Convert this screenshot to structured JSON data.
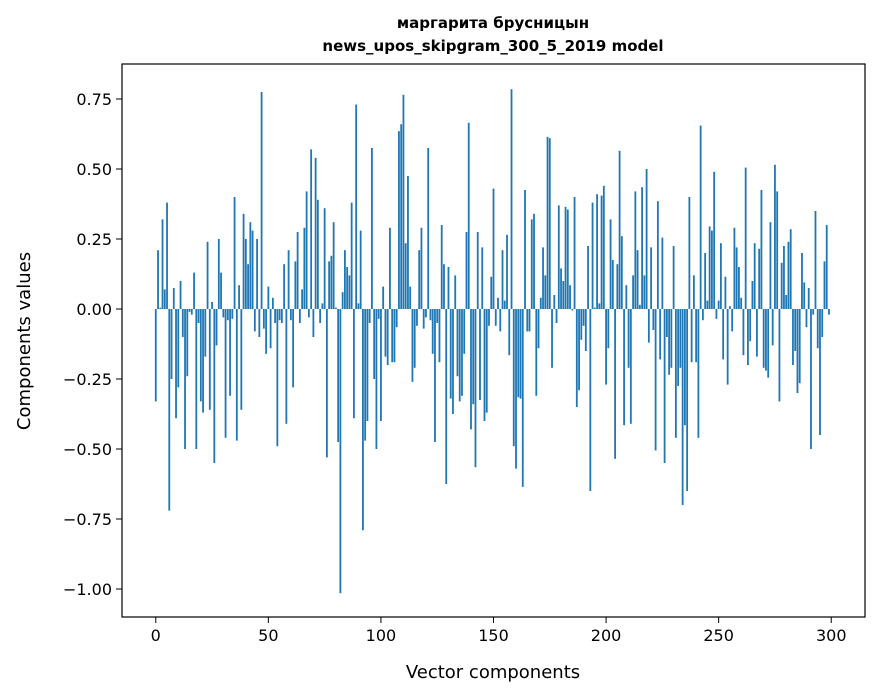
{
  "chart_data": {
    "type": "bar",
    "title_line1": "маргарита брусницын",
    "title_line2": "news_upos_skipgram_300_5_2019 model",
    "xlabel": "Vector components",
    "ylabel": "Components values",
    "xlim": [
      -15,
      315
    ],
    "ylim": [
      -1.1,
      0.875
    ],
    "xticks": [
      0,
      50,
      100,
      150,
      200,
      250,
      300
    ],
    "xtick_labels": [
      "0",
      "50",
      "100",
      "150",
      "200",
      "250",
      "300"
    ],
    "yticks": [
      0.75,
      0.5,
      0.25,
      0.0,
      -0.25,
      -0.5,
      -0.75,
      -1.0
    ],
    "ytick_labels": [
      "0.75",
      "0.50",
      "0.25",
      "0.00",
      "−0.25",
      "−0.50",
      "−0.75",
      "−1.00"
    ],
    "grid": false,
    "bar_color": "#1f77b4",
    "values": [
      -0.33,
      0.21,
      0.005,
      0.32,
      0.07,
      0.38,
      -0.72,
      -0.25,
      0.075,
      -0.39,
      -0.28,
      0.1,
      -0.1,
      -0.5,
      -0.24,
      -0.01,
      -0.02,
      0.13,
      -0.5,
      -0.05,
      -0.33,
      -0.37,
      -0.17,
      0.24,
      -0.36,
      0.025,
      -0.55,
      -0.13,
      0.25,
      0.13,
      -0.03,
      -0.46,
      -0.04,
      -0.31,
      -0.035,
      0.4,
      -0.47,
      0.085,
      -0.36,
      0.34,
      0.25,
      0.16,
      0.31,
      0.28,
      -0.08,
      0.25,
      -0.1,
      0.775,
      -0.07,
      -0.16,
      0.08,
      -0.14,
      0.04,
      -0.05,
      -0.49,
      -0.04,
      -0.05,
      0.16,
      -0.41,
      0.21,
      -0.04,
      -0.28,
      0.17,
      0.275,
      -0.05,
      0.07,
      0.29,
      0.42,
      -0.03,
      0.57,
      -0.1,
      0.54,
      0.39,
      -0.05,
      0.02,
      0.36,
      -0.53,
      0.17,
      0.19,
      0.31,
      0.005,
      -0.475,
      -1.015,
      0.06,
      0.21,
      0.15,
      0.12,
      0.38,
      -0.39,
      0.73,
      0.02,
      0.28,
      -0.79,
      -0.47,
      -0.4,
      -0.05,
      0.575,
      -0.25,
      -0.5,
      -0.035,
      -0.4,
      0.08,
      -0.17,
      -0.2,
      0.29,
      -0.19,
      -0.19,
      -0.065,
      0.635,
      0.66,
      0.765,
      0.235,
      0.475,
      0.08,
      -0.26,
      -0.21,
      -0.06,
      0.21,
      0.29,
      -0.07,
      -0.03,
      0.575,
      -0.04,
      -0.16,
      -0.475,
      -0.05,
      -0.19,
      0.3,
      0.16,
      -0.625,
      0.15,
      -0.32,
      -0.375,
      0.12,
      -0.24,
      -0.33,
      -0.31,
      -0.16,
      0.275,
      0.665,
      -0.43,
      -0.34,
      -0.565,
      0.275,
      -0.325,
      0.22,
      -0.4,
      -0.37,
      -0.06,
      0.115,
      0.43,
      -0.06,
      0.04,
      -0.08,
      0.21,
      0.03,
      0.265,
      -0.165,
      0.785,
      -0.49,
      -0.57,
      -0.315,
      -0.32,
      -0.635,
      0.425,
      -0.08,
      -0.08,
      0.32,
      0.34,
      -0.31,
      -0.14,
      0.04,
      0.22,
      0.12,
      0.615,
      0.61,
      -0.21,
      0.05,
      -0.05,
      0.37,
      0.145,
      0.1,
      0.365,
      0.355,
      0.085,
      -0.005,
      0.4,
      -0.35,
      -0.29,
      -0.11,
      -0.06,
      -0.15,
      0.225,
      -0.65,
      0.38,
      0.005,
      0.41,
      0.02,
      0.405,
      0.44,
      -0.27,
      -0.14,
      0.32,
      0.175,
      -0.535,
      0.16,
      0.565,
      0.26,
      -0.415,
      0.085,
      -0.21,
      -0.41,
      0.12,
      0.42,
      0.21,
      0.015,
      0.435,
      0.12,
      0.5,
      -0.12,
      0.22,
      -0.075,
      -0.505,
      0.385,
      -0.18,
      0.255,
      -0.55,
      -0.1,
      -0.235,
      -0.21,
      0.225,
      -0.46,
      -0.275,
      -0.21,
      -0.7,
      -0.415,
      -0.65,
      0.4,
      -0.19,
      0.12,
      -0.19,
      -0.46,
      0.655,
      -0.04,
      0.2,
      0.03,
      0.295,
      0.28,
      0.49,
      -0.035,
      0.03,
      0.235,
      -0.18,
      0.115,
      -0.27,
      0.01,
      -0.08,
      0.29,
      0.22,
      0.15,
      0.04,
      -0.165,
      0.505,
      -0.2,
      -0.115,
      0.1,
      0.235,
      -0.17,
      0.215,
      0.425,
      -0.21,
      -0.22,
      -0.245,
      0.31,
      -0.13,
      0.515,
      0.42,
      -0.33,
      0.165,
      0.225,
      0.05,
      0.24,
      0.285,
      -0.2,
      -0.15,
      -0.3,
      -0.265,
      0.2,
      0.095,
      -0.065,
      0.075,
      -0.5,
      -0.02,
      0.35,
      -0.14,
      -0.45,
      -0.1,
      0.17,
      0.3,
      -0.02
    ]
  }
}
